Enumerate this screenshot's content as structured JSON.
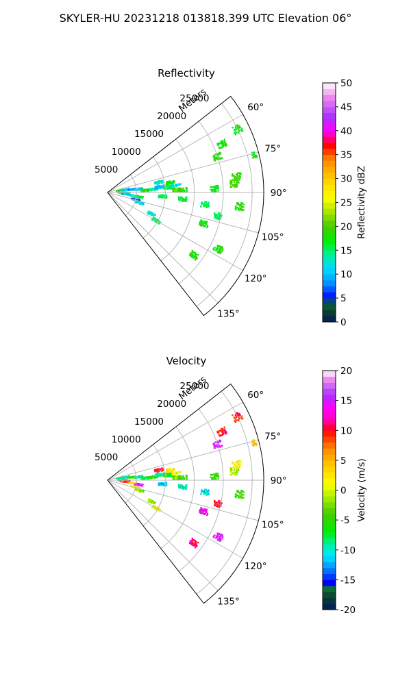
{
  "figure_title": "SKYLER-HU  20231218  013818.399 UTC Elevation 06°",
  "chart_data": [
    {
      "type": "heatmap",
      "projection": "polar-sector",
      "title": "Reflectivity",
      "radial_label": "Meters",
      "radial_ticks": [
        5000,
        10000,
        15000,
        20000,
        25000
      ],
      "radial_range": [
        0,
        27000
      ],
      "azimuth_range_deg": [
        52,
        142
      ],
      "azimuth_ticks_deg": [
        60,
        75,
        90,
        105,
        120,
        135
      ],
      "grid": true,
      "colorbar": {
        "label": "Reflectivity dBZ",
        "range": [
          0,
          50
        ],
        "ticks": [
          0,
          5,
          10,
          15,
          20,
          25,
          30,
          35,
          40,
          45,
          50
        ],
        "stops": [
          {
            "v": 0,
            "c": "#001a5c"
          },
          {
            "v": 2,
            "c": "#0b3d2e"
          },
          {
            "v": 4,
            "c": "#0d6a3a"
          },
          {
            "v": 5,
            "c": "#0000ff"
          },
          {
            "v": 8,
            "c": "#0090ff"
          },
          {
            "v": 11,
            "c": "#00d8ff"
          },
          {
            "v": 14,
            "c": "#00f0a0"
          },
          {
            "v": 17,
            "c": "#00ee00"
          },
          {
            "v": 20,
            "c": "#44cc00"
          },
          {
            "v": 23,
            "c": "#a6e600"
          },
          {
            "v": 26,
            "c": "#ffff00"
          },
          {
            "v": 30,
            "c": "#ffcc00"
          },
          {
            "v": 34,
            "c": "#ff8800"
          },
          {
            "v": 37,
            "c": "#ff0000"
          },
          {
            "v": 40,
            "c": "#ff00ff"
          },
          {
            "v": 43,
            "c": "#aa33ff"
          },
          {
            "v": 47,
            "c": "#ee88ee"
          },
          {
            "v": 50,
            "c": "#ffffff"
          }
        ]
      },
      "echoes": [
        {
          "az": 80,
          "r": 2300,
          "v": 18
        },
        {
          "az": 81,
          "r": 3200,
          "v": 11
        },
        {
          "az": 83,
          "r": 4200,
          "v": 8
        },
        {
          "az": 84,
          "r": 5400,
          "v": 11
        },
        {
          "az": 87,
          "r": 6500,
          "v": 18
        },
        {
          "az": 86,
          "r": 8000,
          "v": 15
        },
        {
          "az": 84,
          "r": 9000,
          "v": 10
        },
        {
          "az": 85,
          "r": 10500,
          "v": 16
        },
        {
          "az": 79,
          "r": 9000,
          "v": 13
        },
        {
          "az": 81,
          "r": 11000,
          "v": 17
        },
        {
          "az": 88,
          "r": 12000,
          "v": 20
        },
        {
          "az": 84,
          "r": 12000,
          "v": 12
        },
        {
          "az": 88,
          "r": 13000,
          "v": 18
        },
        {
          "az": 90,
          "r": 2500,
          "v": 20
        },
        {
          "az": 92,
          "r": 3200,
          "v": 14
        },
        {
          "az": 95,
          "r": 3000,
          "v": 10
        },
        {
          "az": 97,
          "r": 4500,
          "v": 12
        },
        {
          "az": 104,
          "r": 5000,
          "v": 6
        },
        {
          "az": 108,
          "r": 5800,
          "v": 12
        },
        {
          "az": 116,
          "r": 8500,
          "v": 13
        },
        {
          "az": 120,
          "r": 9800,
          "v": 16
        },
        {
          "az": 98,
          "r": 5500,
          "v": 16
        },
        {
          "az": 94,
          "r": 9500,
          "v": 15
        },
        {
          "az": 72,
          "r": 20000,
          "v": 18
        },
        {
          "az": 67,
          "r": 21500,
          "v": 18
        },
        {
          "az": 64,
          "r": 25000,
          "v": 18
        },
        {
          "az": 76,
          "r": 26500,
          "v": 17
        },
        {
          "az": 83,
          "r": 22500,
          "v": 18
        },
        {
          "az": 86,
          "r": 22000,
          "v": 20
        },
        {
          "az": 88,
          "r": 18500,
          "v": 17
        },
        {
          "az": 96,
          "r": 23000,
          "v": 18
        },
        {
          "az": 97,
          "r": 17000,
          "v": 15
        },
        {
          "az": 102,
          "r": 19500,
          "v": 15
        },
        {
          "az": 108,
          "r": 17500,
          "v": 18
        },
        {
          "az": 117,
          "r": 21500,
          "v": 18
        },
        {
          "az": 126,
          "r": 18500,
          "v": 18
        },
        {
          "az": 95,
          "r": 13000,
          "v": 16
        }
      ]
    },
    {
      "type": "heatmap",
      "projection": "polar-sector",
      "title": "Velocity",
      "radial_label": "Meters",
      "radial_ticks": [
        5000,
        10000,
        15000,
        20000,
        25000
      ],
      "radial_range": [
        0,
        27000
      ],
      "azimuth_range_deg": [
        52,
        142
      ],
      "azimuth_ticks_deg": [
        60,
        75,
        90,
        105,
        120,
        135
      ],
      "grid": true,
      "colorbar": {
        "label": "Velocity (m/s)",
        "range": [
          -20,
          20
        ],
        "ticks": [
          -20,
          -15,
          -10,
          -5,
          0,
          5,
          10,
          15,
          20
        ],
        "stops": [
          {
            "v": -20,
            "c": "#001a5c"
          },
          {
            "v": -18,
            "c": "#0b3d2e"
          },
          {
            "v": -16.5,
            "c": "#0d6a3a"
          },
          {
            "v": -15.5,
            "c": "#0000ff"
          },
          {
            "v": -13,
            "c": "#0090ff"
          },
          {
            "v": -11,
            "c": "#00e8ff"
          },
          {
            "v": -9,
            "c": "#00f0a0"
          },
          {
            "v": -7,
            "c": "#00ee00"
          },
          {
            "v": -4,
            "c": "#44cc00"
          },
          {
            "v": -1,
            "c": "#b0f000"
          },
          {
            "v": 1,
            "c": "#ffff00"
          },
          {
            "v": 4,
            "c": "#ffcc00"
          },
          {
            "v": 7,
            "c": "#ff8800"
          },
          {
            "v": 10,
            "c": "#ff0000"
          },
          {
            "v": 12,
            "c": "#ff00cc"
          },
          {
            "v": 14,
            "c": "#ff00ff"
          },
          {
            "v": 16,
            "c": "#aa33ff"
          },
          {
            "v": 18.5,
            "c": "#ee88ee"
          },
          {
            "v": 20,
            "c": "#ffffff"
          }
        ]
      },
      "echoes": [
        {
          "az": 80,
          "r": 2300,
          "v": -8
        },
        {
          "az": 81,
          "r": 3200,
          "v": -10
        },
        {
          "az": 83,
          "r": 4200,
          "v": -6
        },
        {
          "az": 84,
          "r": 5400,
          "v": -9
        },
        {
          "az": 87,
          "r": 6500,
          "v": -8
        },
        {
          "az": 86,
          "r": 8000,
          "v": -4
        },
        {
          "az": 84,
          "r": 9000,
          "v": -9
        },
        {
          "az": 85,
          "r": 10500,
          "v": -6
        },
        {
          "az": 79,
          "r": 9000,
          "v": 10
        },
        {
          "az": 81,
          "r": 11000,
          "v": 2
        },
        {
          "az": 88,
          "r": 12000,
          "v": -3
        },
        {
          "az": 84,
          "r": 12000,
          "v": 1
        },
        {
          "az": 88,
          "r": 13000,
          "v": -5
        },
        {
          "az": 90,
          "r": 2500,
          "v": -12
        },
        {
          "az": 92,
          "r": 3200,
          "v": 14
        },
        {
          "az": 95,
          "r": 3000,
          "v": 8
        },
        {
          "az": 97,
          "r": 4500,
          "v": 3
        },
        {
          "az": 104,
          "r": 5000,
          "v": 1
        },
        {
          "az": 108,
          "r": 5800,
          "v": -2
        },
        {
          "az": 116,
          "r": 8500,
          "v": -1
        },
        {
          "az": 120,
          "r": 9800,
          "v": 1
        },
        {
          "az": 98,
          "r": 5500,
          "v": 15
        },
        {
          "az": 94,
          "r": 9500,
          "v": -12
        },
        {
          "az": 72,
          "r": 20000,
          "v": 15
        },
        {
          "az": 67,
          "r": 21500,
          "v": 10
        },
        {
          "az": 64,
          "r": 25000,
          "v": 10
        },
        {
          "az": 76,
          "r": 26500,
          "v": 4
        },
        {
          "az": 83,
          "r": 22500,
          "v": 1
        },
        {
          "az": 86,
          "r": 22000,
          "v": -1
        },
        {
          "az": 88,
          "r": 18500,
          "v": -5
        },
        {
          "az": 96,
          "r": 23000,
          "v": -5
        },
        {
          "az": 97,
          "r": 17000,
          "v": -11
        },
        {
          "az": 102,
          "r": 19500,
          "v": 10
        },
        {
          "az": 108,
          "r": 17500,
          "v": 14
        },
        {
          "az": 117,
          "r": 21500,
          "v": 15
        },
        {
          "az": 126,
          "r": 18500,
          "v": 11
        },
        {
          "az": 95,
          "r": 13000,
          "v": -10
        }
      ]
    }
  ]
}
